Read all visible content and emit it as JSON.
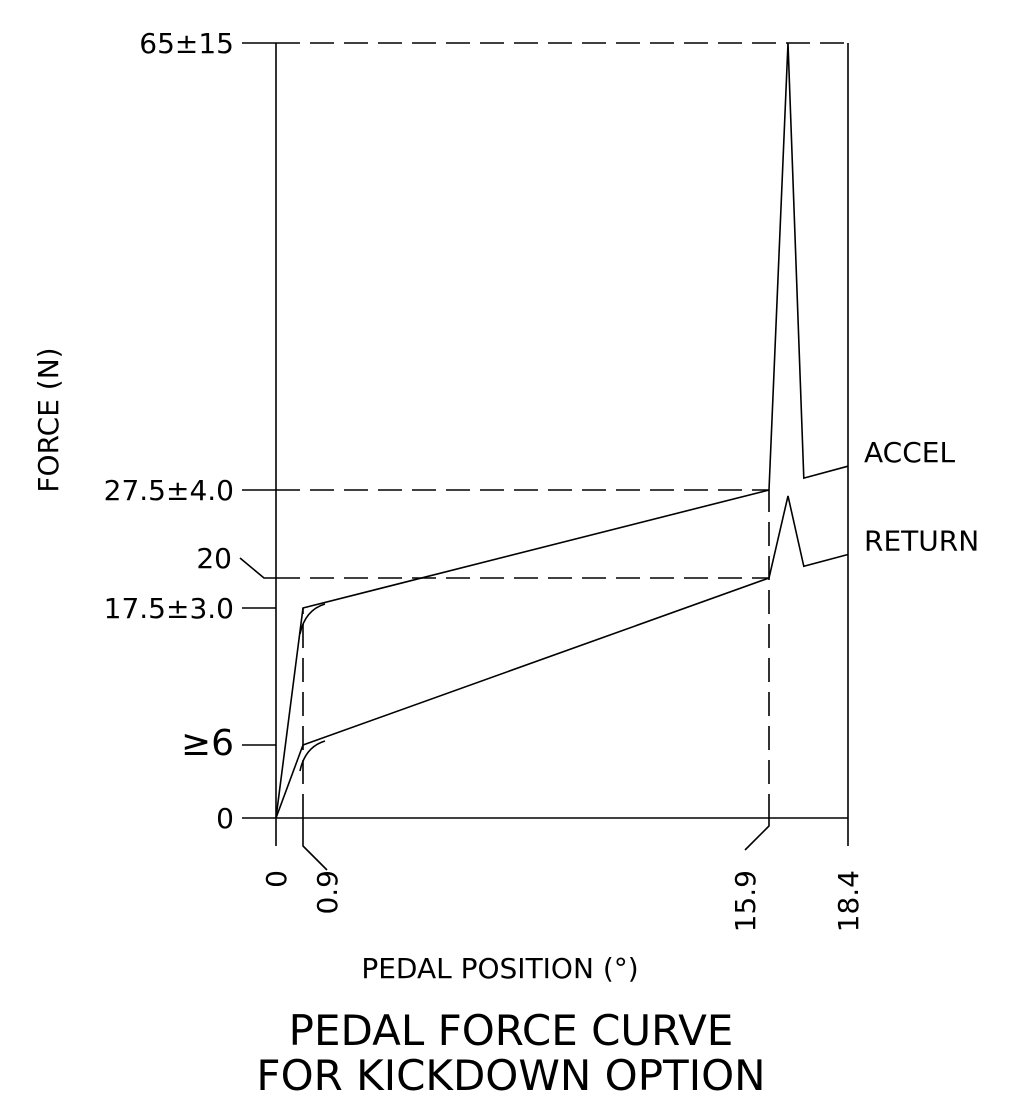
{
  "chart_data": {
    "type": "line",
    "title_lines": [
      "PEDAL FORCE CURVE",
      "FOR KICKDOWN OPTION"
    ],
    "xlabel": "PEDAL POSITION (°)",
    "ylabel": "FORCE (N)",
    "x_ticks": [
      {
        "value": 0,
        "label": "0"
      },
      {
        "value": 0.9,
        "label": "0.9"
      },
      {
        "value": 15.9,
        "label": "15.9"
      },
      {
        "value": 18.4,
        "label": "18.4"
      }
    ],
    "y_ticks": [
      {
        "value": 0,
        "label": "0"
      },
      {
        "value": 6,
        "label": "≥6"
      },
      {
        "value": 17.5,
        "label": "17.5±3.0"
      },
      {
        "value": 20,
        "label": "20"
      },
      {
        "value": 27.5,
        "label": "27.5±4.0"
      },
      {
        "value": 65,
        "label": "65±15"
      }
    ],
    "xlim": [
      0,
      18.4
    ],
    "ylim": [
      0,
      65
    ],
    "grid": false,
    "series": [
      {
        "name": "ACCEL",
        "points": [
          [
            0,
            0
          ],
          [
            0.9,
            17.5
          ],
          [
            15.9,
            27.5
          ],
          [
            16.5,
            65
          ],
          [
            17.0,
            28.5
          ],
          [
            18.4,
            29.5
          ]
        ]
      },
      {
        "name": "RETURN",
        "points": [
          [
            0,
            0
          ],
          [
            0.9,
            6
          ],
          [
            15.9,
            20
          ],
          [
            16.5,
            27
          ],
          [
            17.0,
            21
          ],
          [
            18.4,
            22
          ]
        ]
      }
    ],
    "guides": [
      {
        "from": [
          0,
          65
        ],
        "to": [
          18.4,
          65
        ]
      },
      {
        "from": [
          0,
          27.5
        ],
        "to": [
          15.9,
          27.5
        ]
      },
      {
        "from": [
          0,
          20
        ],
        "to": [
          15.9,
          20
        ]
      },
      {
        "from": [
          0.9,
          0
        ],
        "to": [
          0.9,
          17.5
        ]
      },
      {
        "from": [
          15.9,
          0
        ],
        "to": [
          15.9,
          27.5
        ]
      }
    ]
  }
}
